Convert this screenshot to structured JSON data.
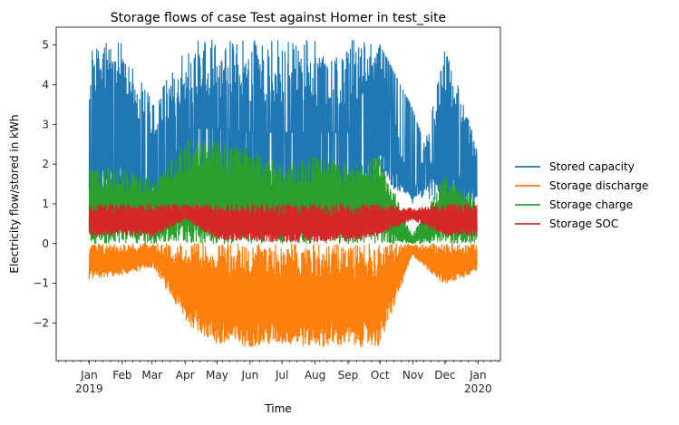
{
  "chart_data": {
    "type": "line",
    "title": "Storage flows of case Test against Homer in test_site",
    "xlabel": "Time",
    "ylabel": "Electricity flow/stored in kWh",
    "xlim": [
      "2018-12-01",
      "2020-01-22"
    ],
    "ylim": [
      -2.95,
      5.45
    ],
    "grid": false,
    "legend_placement": "outside-right",
    "x_ticks": [
      {
        "label": "Jan",
        "sublabel": "2019",
        "x": "2019-01-01"
      },
      {
        "label": "Feb",
        "x": "2019-02-01"
      },
      {
        "label": "Mar",
        "x": "2019-03-01"
      },
      {
        "label": "Apr",
        "x": "2019-04-01"
      },
      {
        "label": "May",
        "x": "2019-05-01"
      },
      {
        "label": "Jun",
        "x": "2019-06-01"
      },
      {
        "label": "Jul",
        "x": "2019-07-01"
      },
      {
        "label": "Aug",
        "x": "2019-08-01"
      },
      {
        "label": "Sep",
        "x": "2019-09-01"
      },
      {
        "label": "Oct",
        "x": "2019-10-01"
      },
      {
        "label": "Nov",
        "x": "2019-11-01"
      },
      {
        "label": "Dec",
        "x": "2019-12-01"
      },
      {
        "label": "Jan",
        "sublabel": "2020",
        "x": "2020-01-01"
      }
    ],
    "y_ticks": [
      -2,
      -1,
      0,
      1,
      2,
      3,
      4,
      5
    ],
    "y_tick_labels": [
      "−2",
      "−1",
      "0",
      "1",
      "2",
      "3",
      "4",
      "5"
    ],
    "x_range": [
      "2019-01-01",
      "2019-12-31"
    ],
    "series": [
      {
        "name": "Stored capacity",
        "color": "#1f77b4",
        "band_low": [
          1.05,
          1.0,
          1.0,
          0.5,
          0.3,
          0.3,
          0.3,
          0.3,
          0.4,
          1.5,
          1.2,
          1.0,
          1.0
        ],
        "band_high": [
          5.0,
          5.1,
          3.5,
          5.12,
          5.12,
          5.12,
          5.12,
          5.12,
          5.12,
          5.12,
          1.0,
          5.0,
          2.5
        ],
        "baseline": [
          1.0,
          1.0,
          1.0,
          2.9,
          2.9,
          2.8,
          2.8,
          2.8,
          2.8,
          5.0,
          3.4,
          1.0,
          1.0
        ]
      },
      {
        "name": "Storage discharge",
        "color": "#ff7f0e",
        "band_low": [
          -0.9,
          -0.8,
          -0.6,
          -2.0,
          -2.6,
          -2.6,
          -2.55,
          -2.6,
          -2.6,
          -2.6,
          -0.3,
          -1.05,
          -0.7
        ],
        "band_high": [
          0,
          0,
          0,
          0,
          0,
          0,
          0,
          0,
          0,
          0,
          0,
          0,
          0
        ]
      },
      {
        "name": "Storage charge",
        "color": "#2ca02c",
        "band_low": [
          0,
          0,
          0,
          0,
          0,
          0,
          0,
          0,
          0,
          0,
          0,
          0,
          0
        ],
        "band_high": [
          1.9,
          1.9,
          1.6,
          2.6,
          2.6,
          2.4,
          2.0,
          2.2,
          2.0,
          2.2,
          0.2,
          1.7,
          1.2
        ]
      },
      {
        "name": "Storage SOC",
        "color": "#d62728",
        "band_low": [
          0.2,
          0.2,
          0.2,
          0.6,
          0.05,
          0.05,
          0.05,
          0.05,
          0.05,
          0.2,
          0.6,
          0.2,
          0.2
        ],
        "band_high": [
          1.0,
          1.0,
          1.0,
          1.0,
          1.0,
          1.0,
          1.0,
          1.0,
          1.0,
          1.0,
          0.9,
          1.0,
          1.0
        ]
      }
    ]
  }
}
